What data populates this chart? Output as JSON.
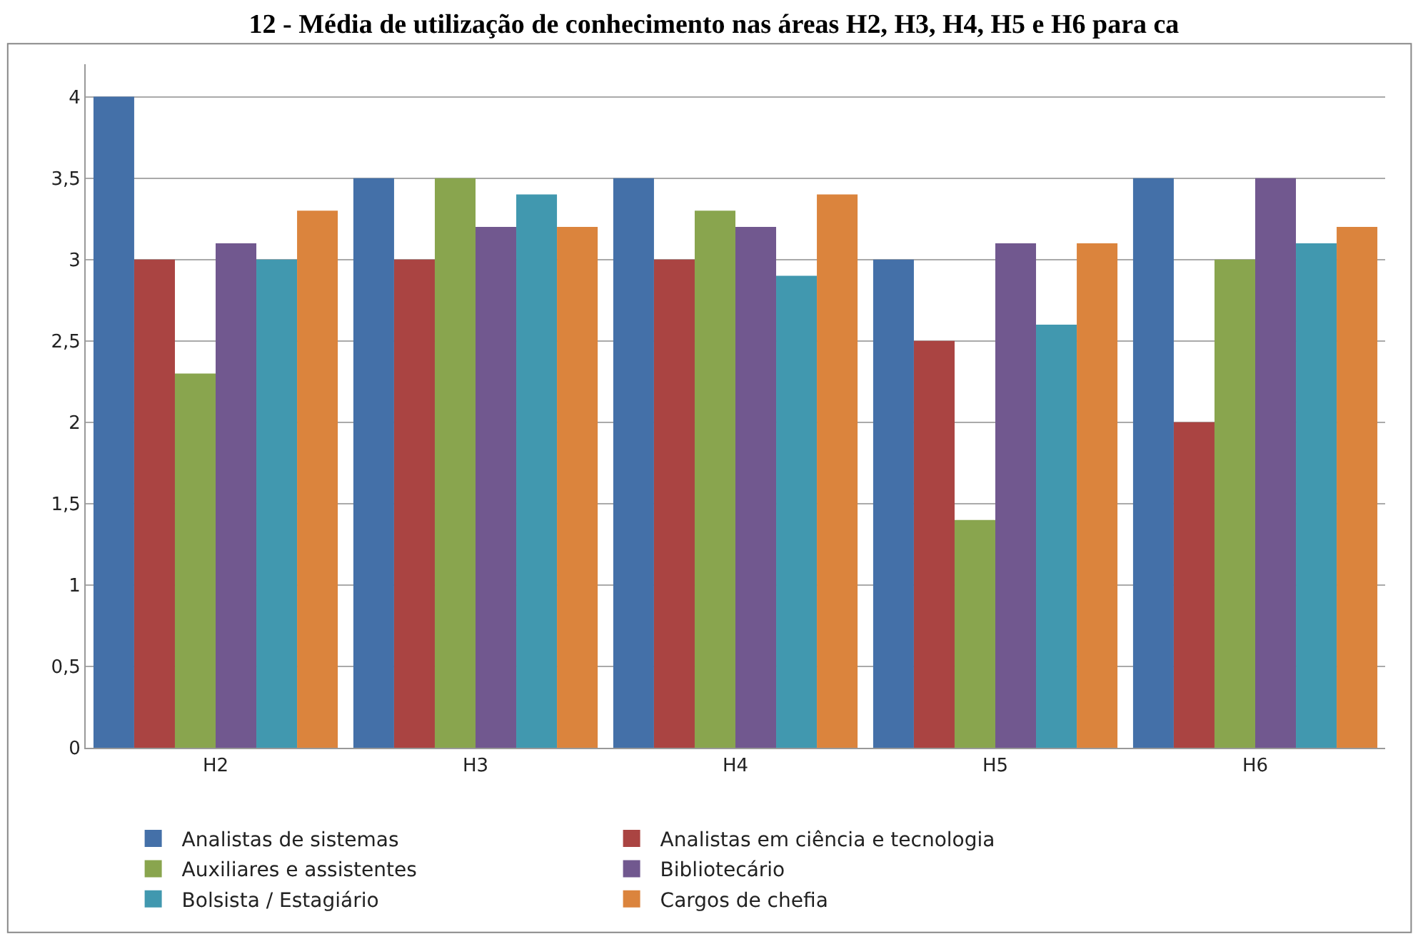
{
  "chart_data": {
    "type": "bar",
    "title": "12 - Média de utilização de conhecimento nas áreas H2, H3, H4, H5 e H6 para ca",
    "categories": [
      "H2",
      "H3",
      "H4",
      "H5",
      "H6"
    ],
    "series": [
      {
        "name": "Analistas de sistemas",
        "color": "#4470a8",
        "values": [
          4,
          3.5,
          3.5,
          3,
          3.5
        ]
      },
      {
        "name": "Analistas em ciência e tecnologia",
        "color": "#aa4442",
        "values": [
          3,
          3,
          3,
          2.5,
          2
        ]
      },
      {
        "name": "Auxiliares e assistentes",
        "color": "#89a54e",
        "values": [
          2.3,
          3.5,
          3.3,
          1.4,
          3
        ]
      },
      {
        "name": "Bibliotecário",
        "color": "#71588f",
        "values": [
          3.1,
          3.2,
          3.2,
          3.1,
          3.5
        ]
      },
      {
        "name": "Bolsista / Estagiário",
        "color": "#4198af",
        "values": [
          3,
          3.4,
          2.9,
          2.6,
          3.1
        ]
      },
      {
        "name": "Cargos de chefia",
        "color": "#db843d",
        "values": [
          3.3,
          3.2,
          3.4,
          3.1,
          3.2
        ]
      }
    ],
    "ylim": [
      0,
      4.2
    ],
    "yticks": [
      0,
      {
        "value": 0.5,
        "label": "0,5"
      },
      1,
      {
        "value": 1.5,
        "label": "1,5"
      },
      2,
      {
        "value": 2.5,
        "label": "2,5"
      },
      3,
      {
        "value": 3.5,
        "label": "3,5"
      },
      4
    ],
    "grid": "y",
    "legend": "bottom"
  }
}
